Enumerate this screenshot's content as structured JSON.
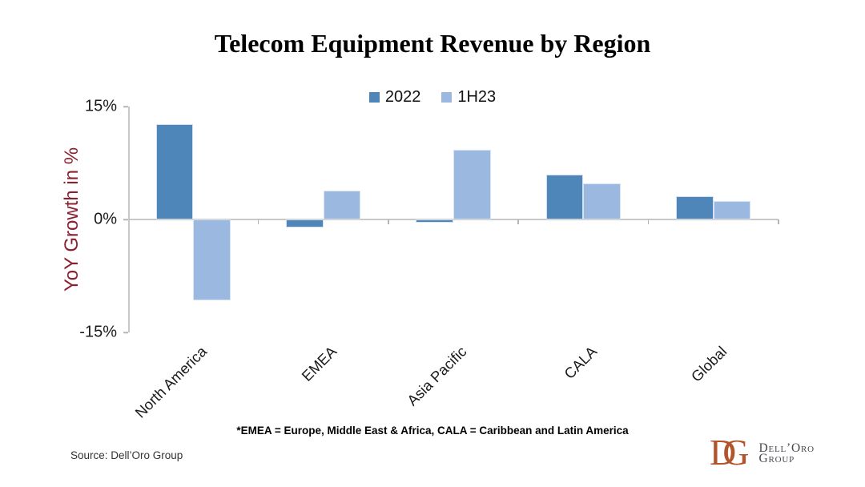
{
  "chart_data": {
    "type": "bar",
    "title": "Telecom Equipment Revenue by Region",
    "ylabel": "YoY Growth in %",
    "ylim": [
      -15,
      15
    ],
    "yticks": [
      {
        "value": 15,
        "label": "15%"
      },
      {
        "value": 0,
        "label": "0%"
      },
      {
        "value": -15,
        "label": "-15%"
      }
    ],
    "categories": [
      "North America",
      "EMEA",
      "Asia Pacific",
      "CALA",
      "Global"
    ],
    "series": [
      {
        "name": "2022",
        "color": "#4f86ba",
        "values": [
          12.7,
          -1.1,
          -0.4,
          6.0,
          3.1
        ]
      },
      {
        "name": "1H23",
        "color": "#9ab8e0",
        "values": [
          -10.7,
          3.8,
          9.3,
          4.8,
          2.5
        ]
      }
    ],
    "legend_position": "top",
    "grid": false
  },
  "footnote": "*EMEA = Europe, Middle East & Africa, CALA = Caribbean and Latin America",
  "source": "Source: Dell’Oro Group",
  "logo": {
    "monogram_d": "D",
    "monogram_g": "G",
    "name_line1": "Dell’Oro",
    "name_line2": "Group",
    "monogram_color": "#b3552a"
  },
  "colors": {
    "axis_line": "#c8c8c8",
    "tick": "#b5b5b5",
    "ylabel_text": "#8b2130",
    "series_2022": "#4f86ba",
    "series_1h23": "#9ab8e0"
  }
}
